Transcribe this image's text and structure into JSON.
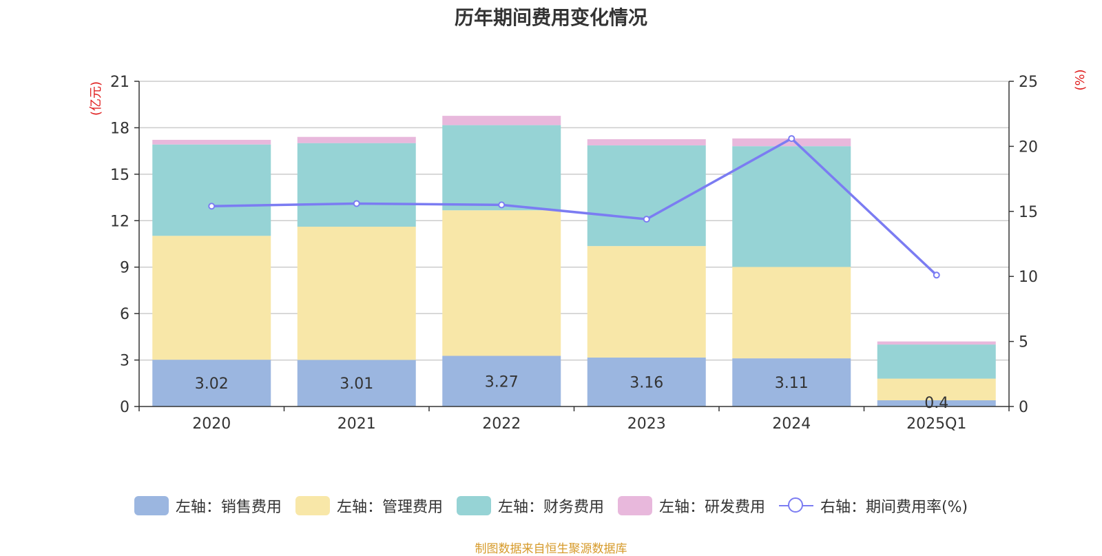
{
  "title": "历年期间费用变化情况",
  "source": "制图数据来自恒生聚源数据库",
  "chart_data": {
    "type": "bar",
    "stacked": true,
    "title": "历年期间费用变化情况",
    "categories": [
      "2020",
      "2021",
      "2022",
      "2023",
      "2024",
      "2025Q1"
    ],
    "left_axis": {
      "unit": "(亿元)",
      "ylim": [
        0,
        21
      ],
      "ticks": [
        "0",
        "3",
        "6",
        "9",
        "12",
        "15",
        "18",
        "21"
      ]
    },
    "right_axis": {
      "unit": "(%)",
      "ylim": [
        0,
        25
      ],
      "ticks": [
        "0",
        "5",
        "10",
        "15",
        "20",
        "25"
      ]
    },
    "series": [
      {
        "name": "左轴：销售费用",
        "color": "#9bb6e0",
        "axis": "left",
        "values": [
          3.02,
          3.01,
          3.27,
          3.16,
          3.11,
          0.4
        ],
        "labels": [
          "3.02",
          "3.01",
          "3.27",
          "3.16",
          "3.11",
          "0.4"
        ]
      },
      {
        "name": "左轴：管理费用",
        "color": "#f8e7a8",
        "axis": "left",
        "values": [
          8.0,
          8.6,
          9.4,
          7.2,
          5.9,
          1.4
        ]
      },
      {
        "name": "左轴：财务费用",
        "color": "#96d3d5",
        "axis": "left",
        "values": [
          5.9,
          5.4,
          5.5,
          6.5,
          7.8,
          2.2
        ]
      },
      {
        "name": "左轴：研发费用",
        "color": "#e8b8dc",
        "axis": "left",
        "values": [
          0.3,
          0.4,
          0.6,
          0.4,
          0.5,
          0.2
        ]
      },
      {
        "name": "右轴：期间费用率(%)",
        "color": "#7b7cf2",
        "axis": "right",
        "type": "line",
        "values": [
          15.4,
          15.6,
          15.5,
          14.4,
          20.6,
          10.1
        ]
      }
    ],
    "grid": true,
    "legend_position": "bottom"
  }
}
